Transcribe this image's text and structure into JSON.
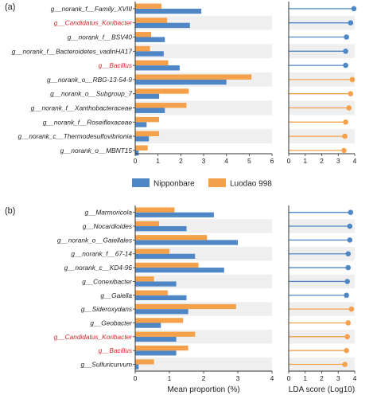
{
  "legend": {
    "items": [
      {
        "name": "Nipponbare",
        "color": "#4f87c6"
      },
      {
        "name": "Luodao 998",
        "color": "#f5a04a"
      }
    ]
  },
  "chart_data": [
    {
      "panel_label": "(a)",
      "type": "bar",
      "orientation": "horizontal",
      "xlabel": "",
      "xlim": [
        0,
        6
      ],
      "xticks": [
        0,
        1,
        2,
        3,
        4,
        5,
        6
      ],
      "categories": [
        "g__norank_f__Family_XVIII",
        "g__Candidatus_Koribacter",
        "g__norank_f__BSV40",
        "g__norank_f__Bacteroidetes_vadinHA17",
        "g__Bacillus",
        "g__norank_o__RBG-13-54-9",
        "g__norank_o__Subgroup_7",
        "g__norank_f__Xanthobacteraceae",
        "g__norank_f__Roseiflexaceae",
        "g__norank_c__Thermodesulfovibrionia",
        "g__norank_o__MBNT15"
      ],
      "highlighted_categories": [
        "g__Candidatus_Koribacter",
        "g__Bacillus"
      ],
      "series": [
        {
          "name": "Nipponbare",
          "values": [
            2.9,
            2.4,
            1.3,
            1.25,
            1.95,
            4.0,
            1.05,
            1.3,
            0.5,
            0.6,
            0.15
          ]
        },
        {
          "name": "Luodao 998",
          "values": [
            1.15,
            1.4,
            0.7,
            0.65,
            1.45,
            5.1,
            2.35,
            2.25,
            1.05,
            1.05,
            0.55
          ]
        }
      ],
      "lda": {
        "xlabel": "",
        "xlim": [
          0,
          4
        ],
        "xticks": [
          0,
          1,
          2,
          3,
          4
        ],
        "values": [
          3.95,
          3.75,
          3.5,
          3.45,
          3.45,
          3.85,
          3.75,
          3.65,
          3.45,
          3.4,
          3.35
        ],
        "groups": [
          "Nipponbare",
          "Nipponbare",
          "Nipponbare",
          "Nipponbare",
          "Nipponbare",
          "Luodao 998",
          "Luodao 998",
          "Luodao 998",
          "Luodao 998",
          "Luodao 998",
          "Luodao 998"
        ]
      }
    },
    {
      "panel_label": "(b)",
      "type": "bar",
      "orientation": "horizontal",
      "xlabel": "Mean proportion (%)",
      "xlim": [
        0,
        4
      ],
      "xticks": [
        0,
        1,
        2,
        3,
        4
      ],
      "categories": [
        "g__Marmoricola",
        "g__Nocardioides",
        "g__norank_o__Gaiellales",
        "g__norank_f__67-14",
        "g__norank_c__KD4-96",
        "g__Conexibacter",
        "g__Gaiella",
        "g__Sideroxydans",
        "g__Geobacter",
        "g__Candidatus_Koribacter",
        "g__Bacillus",
        "g__Sulfuricurvum"
      ],
      "highlighted_categories": [
        "g__Candidatus_Koribacter",
        "g__Bacillus"
      ],
      "series": [
        {
          "name": "Nipponbare",
          "values": [
            2.3,
            1.5,
            3.0,
            1.75,
            2.6,
            1.2,
            1.5,
            1.55,
            0.75,
            1.2,
            1.2,
            0.1
          ]
        },
        {
          "name": "Luodao 998",
          "values": [
            1.15,
            0.7,
            2.1,
            1.0,
            1.85,
            0.55,
            0.95,
            2.95,
            1.4,
            1.75,
            1.55,
            0.55
          ]
        }
      ],
      "lda": {
        "xlabel": "LDA score (Log10)",
        "xlim": [
          0,
          4
        ],
        "xticks": [
          0,
          1,
          2,
          3,
          4
        ],
        "values": [
          3.75,
          3.7,
          3.7,
          3.6,
          3.6,
          3.55,
          3.5,
          3.8,
          3.6,
          3.55,
          3.5,
          3.4
        ],
        "groups": [
          "Nipponbare",
          "Nipponbare",
          "Nipponbare",
          "Nipponbare",
          "Nipponbare",
          "Nipponbare",
          "Nipponbare",
          "Luodao 998",
          "Luodao 998",
          "Luodao 998",
          "Luodao 998",
          "Luodao 998"
        ]
      }
    }
  ]
}
